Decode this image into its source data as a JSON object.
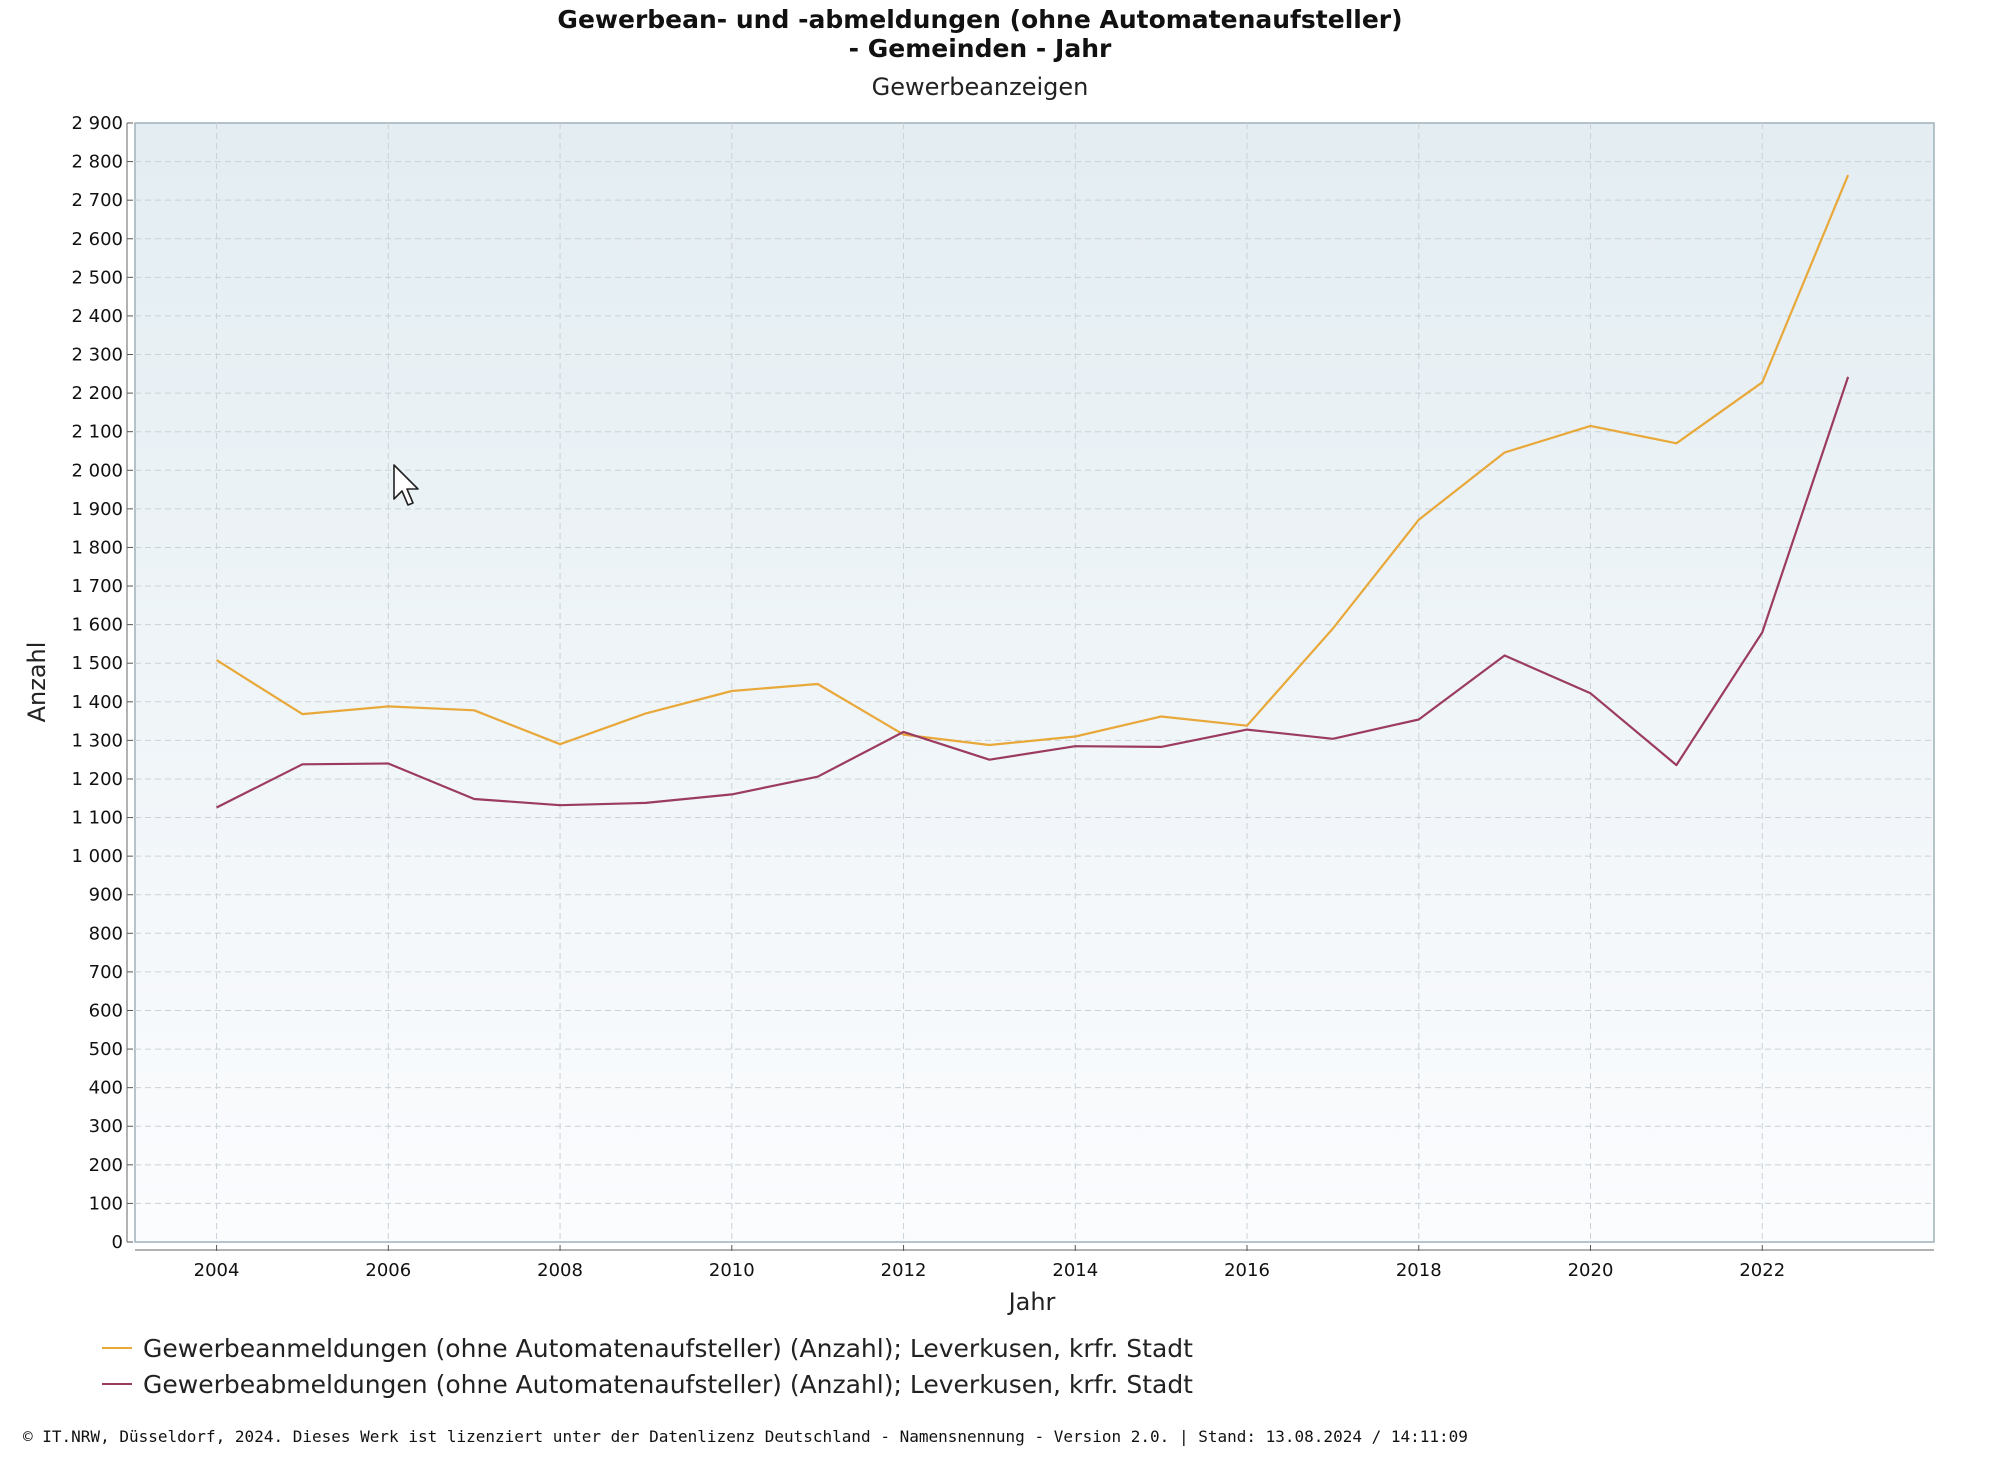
{
  "chart_data": {
    "type": "line",
    "title_line1": "Gewerbean- und -abmeldungen (ohne Automatenaufsteller)",
    "title_line2": "- Gemeinden - Jahr",
    "subtitle": "Gewerbeanzeigen",
    "xlabel": "Jahr",
    "ylabel": "Anzahl",
    "ylim": [
      0,
      2900
    ],
    "xlim": [
      2003.05,
      2024.0
    ],
    "yticks": [
      0,
      100,
      200,
      300,
      400,
      500,
      600,
      700,
      800,
      900,
      1000,
      1100,
      1200,
      1300,
      1400,
      1500,
      1600,
      1700,
      1800,
      1900,
      2000,
      2100,
      2200,
      2300,
      2400,
      2500,
      2600,
      2700,
      2800,
      2900
    ],
    "ytick_labels": [
      "0",
      "100",
      "200",
      "300",
      "400",
      "500",
      "600",
      "700",
      "800",
      "900",
      "1 000",
      "1 100",
      "1 200",
      "1 300",
      "1 400",
      "1 500",
      "1 600",
      "1 700",
      "1 800",
      "1 900",
      "2 000",
      "2 100",
      "2 200",
      "2 300",
      "2 400",
      "2 500",
      "2 600",
      "2 700",
      "2 800",
      "2 900"
    ],
    "xticks": [
      2004,
      2006,
      2008,
      2010,
      2012,
      2014,
      2016,
      2018,
      2020,
      2022
    ],
    "xtick_labels": [
      "2004",
      "2006",
      "2008",
      "2010",
      "2012",
      "2014",
      "2016",
      "2018",
      "2020",
      "2022"
    ],
    "grid": true,
    "legend_position": "bottom-left",
    "x": [
      2004,
      2005,
      2006,
      2007,
      2008,
      2009,
      2010,
      2011,
      2012,
      2013,
      2014,
      2015,
      2016,
      2017,
      2018,
      2019,
      2020,
      2021,
      2022,
      2023
    ],
    "series": [
      {
        "name": "Gewerbeanmeldungen (ohne Automatenaufsteller) (Anzahl); Leverkusen, krfr. Stadt",
        "color": "#e8a83a",
        "values": [
          1508,
          1368,
          1388,
          1378,
          1290,
          1370,
          1428,
          1446,
          1315,
          1288,
          1310,
          1362,
          1338,
          1590,
          1872,
          2046,
          2115,
          2070,
          2228,
          2765
        ]
      },
      {
        "name": "Gewerbeabmeldungen (ohne Automatenaufsteller) (Anzahl); Leverkusen, krfr. Stadt",
        "color": "#9b3b5e",
        "values": [
          1126,
          1238,
          1240,
          1148,
          1132,
          1138,
          1160,
          1206,
          1322,
          1250,
          1285,
          1283,
          1328,
          1304,
          1354,
          1520,
          1422,
          1236,
          1580,
          2242
        ]
      }
    ]
  },
  "footer_text": "© IT.NRW, Düsseldorf, 2024. Dieses Werk ist lizenziert unter der Datenlizenz Deutschland - Namensnennung - Version 2.0. | Stand: 13.08.2024 / 14:11:09",
  "plot_bg_top": "#e3edf2",
  "plot_bg_bottom": "#fbfcfe",
  "plot_border_color": "#9fb2ba"
}
